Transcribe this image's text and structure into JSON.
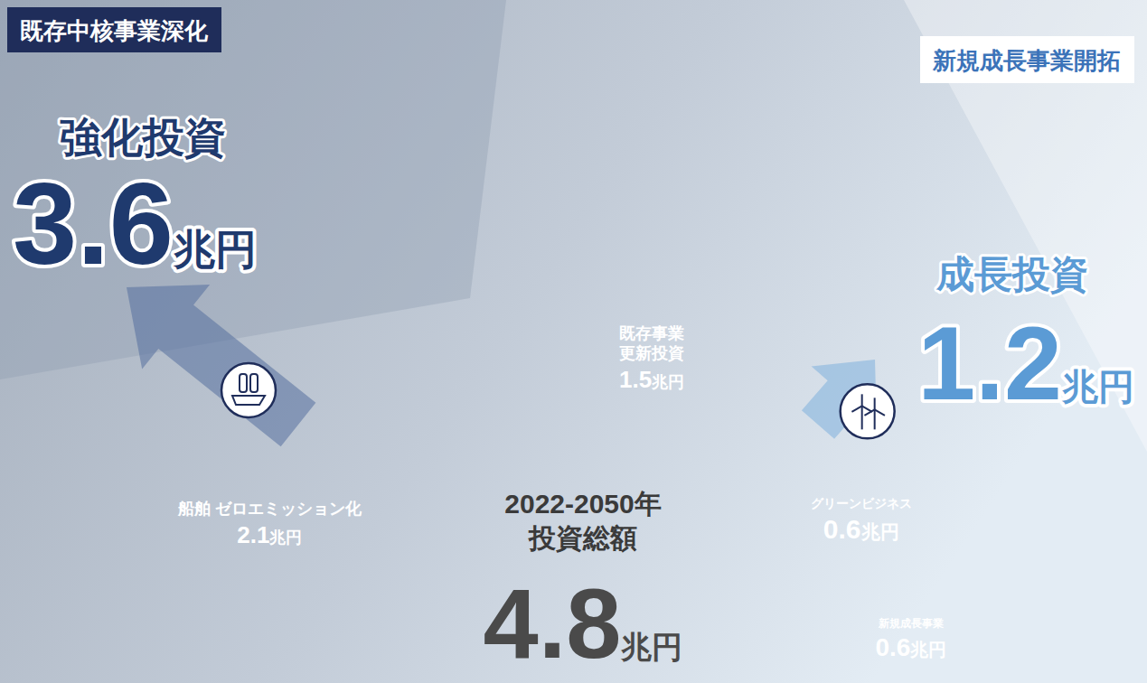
{
  "chart_data": {
    "type": "donut",
    "center_texts": [
      "2022-2050年",
      "投資総額"
    ],
    "total_label": "4.8兆円",
    "categories": [
      "船舶 ゼロエミッション化",
      "既存事業\n更新投資",
      "グリーンビジネス",
      "新規成長事業"
    ],
    "values": [
      2.1,
      1.5,
      0.6,
      0.6
    ],
    "value_labels": [
      "2.1兆円",
      "1.5兆円",
      "0.6兆円",
      "0.6兆円"
    ],
    "colors": [
      "#1f2d5a",
      "#5b6f97",
      "#4a86c4",
      "#a8c8e4"
    ],
    "data_labels": true,
    "groups": [
      {
        "banner": "既存中核事業深化",
        "title": "強化投資",
        "total_label": "3.6兆円"
      },
      {
        "banner": "新規成長事業開拓",
        "title": "成長投資",
        "total_label": "1.2兆円"
      }
    ]
  }
}
